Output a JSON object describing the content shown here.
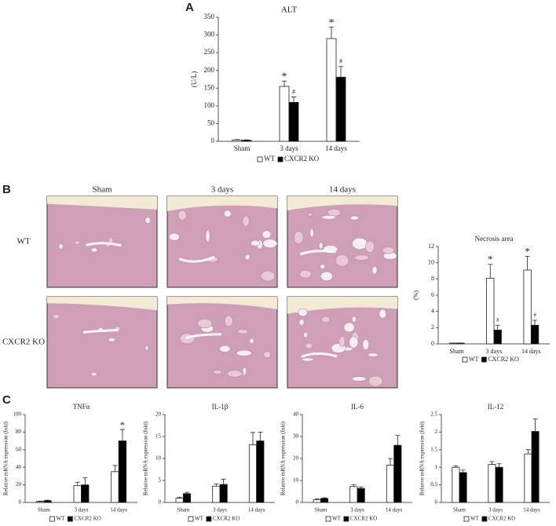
{
  "panels": [
    "A",
    "B",
    "C"
  ],
  "histology": {
    "columns": [
      "Sham",
      "3 days",
      "14 days"
    ],
    "rows": [
      "WT",
      "CXCR2 KO"
    ]
  },
  "chart_data": [
    {
      "type": "bar",
      "title": "ALT",
      "ylabel": "(U/L)",
      "categories": [
        "Sham",
        "3 days",
        "14 days"
      ],
      "series": [
        {
          "name": "WT",
          "color": "#ffffff",
          "values": [
            4,
            155,
            290
          ],
          "errors": [
            1,
            15,
            32
          ],
          "marks": [
            null,
            "*",
            "*"
          ]
        },
        {
          "name": "CXCR2 KO",
          "color": "#000000",
          "values": [
            3,
            110,
            181
          ],
          "errors": [
            1,
            15,
            30
          ],
          "marks": [
            null,
            "#",
            "#"
          ]
        }
      ],
      "ylim": [
        0,
        350
      ],
      "yticks": [
        0,
        50,
        100,
        150,
        200,
        250,
        300,
        350
      ]
    },
    {
      "type": "bar",
      "title": "Necrosis area",
      "ylabel": "(%)",
      "categories": [
        "Sham",
        "3 days",
        "14 days"
      ],
      "series": [
        {
          "name": "WT",
          "color": "#ffffff",
          "values": [
            0.1,
            8.1,
            9.1
          ],
          "errors": [
            0,
            1.7,
            1.7
          ],
          "marks": [
            null,
            "*",
            "*"
          ]
        },
        {
          "name": "CXCR2 KO",
          "color": "#000000",
          "values": [
            0.1,
            1.7,
            2.3
          ],
          "errors": [
            0,
            0.6,
            0.6
          ],
          "marks": [
            null,
            "#",
            "#"
          ]
        }
      ],
      "ylim": [
        0,
        12
      ],
      "yticks": [
        0,
        2,
        4,
        6,
        8,
        10,
        12
      ]
    },
    {
      "type": "bar",
      "title": "TNFα",
      "ylabel": "Relative mRNA expression (fold)",
      "categories": [
        "Sham",
        "3 days",
        "14 days"
      ],
      "series": [
        {
          "name": "WT",
          "color": "#ffffff",
          "values": [
            1,
            19,
            35
          ],
          "errors": [
            0.5,
            4,
            7
          ],
          "marks": [
            null,
            null,
            null
          ]
        },
        {
          "name": "CXCR2 KO",
          "color": "#000000",
          "values": [
            2,
            20,
            70
          ],
          "errors": [
            0.5,
            8,
            13
          ],
          "marks": [
            null,
            null,
            "*"
          ]
        }
      ],
      "ylim": [
        0,
        100
      ],
      "yticks": [
        0,
        20,
        40,
        60,
        80,
        100
      ]
    },
    {
      "type": "bar",
      "title": "IL-1β",
      "ylabel": "Relative mRNA expression (fold)",
      "categories": [
        "Sham",
        "3 days",
        "14 days"
      ],
      "series": [
        {
          "name": "WT",
          "color": "#ffffff",
          "values": [
            1,
            3.7,
            13.1
          ],
          "errors": [
            0.2,
            0.5,
            2.8
          ]
        },
        {
          "name": "CXCR2 KO",
          "color": "#000000",
          "values": [
            2,
            4.1,
            14
          ],
          "errors": [
            0.3,
            1.2,
            2
          ]
        }
      ],
      "ylim": [
        0,
        20
      ],
      "yticks": [
        0,
        5,
        10,
        15,
        20
      ]
    },
    {
      "type": "bar",
      "title": "IL-6",
      "ylabel": "Relative mRNA expression (fold)",
      "categories": [
        "Sham",
        "3 days",
        "14 days"
      ],
      "series": [
        {
          "name": "WT",
          "color": "#ffffff",
          "values": [
            1.2,
            7.2,
            17
          ],
          "errors": [
            0.4,
            0.8,
            3
          ]
        },
        {
          "name": "CXCR2 KO",
          "color": "#000000",
          "values": [
            1.8,
            6.4,
            26
          ],
          "errors": [
            0.3,
            0.7,
            4.5
          ]
        }
      ],
      "ylim": [
        0,
        40
      ],
      "yticks": [
        0,
        10,
        20,
        30,
        40
      ]
    },
    {
      "type": "bar",
      "title": "IL-12",
      "ylabel": "Relative mRNA expression (fold)",
      "categories": [
        "Sham",
        "3 days",
        "14 days"
      ],
      "series": [
        {
          "name": "WT",
          "color": "#ffffff",
          "values": [
            1.0,
            1.08,
            1.38
          ],
          "errors": [
            0.04,
            0.08,
            0.12
          ]
        },
        {
          "name": "CXCR2 KO",
          "color": "#000000",
          "values": [
            0.85,
            1.0,
            2.02
          ],
          "errors": [
            0.07,
            0.1,
            0.35
          ]
        }
      ],
      "ylim": [
        0,
        2.5
      ],
      "yticks": [
        0,
        0.5,
        1,
        1.5,
        2,
        2.5
      ]
    }
  ]
}
